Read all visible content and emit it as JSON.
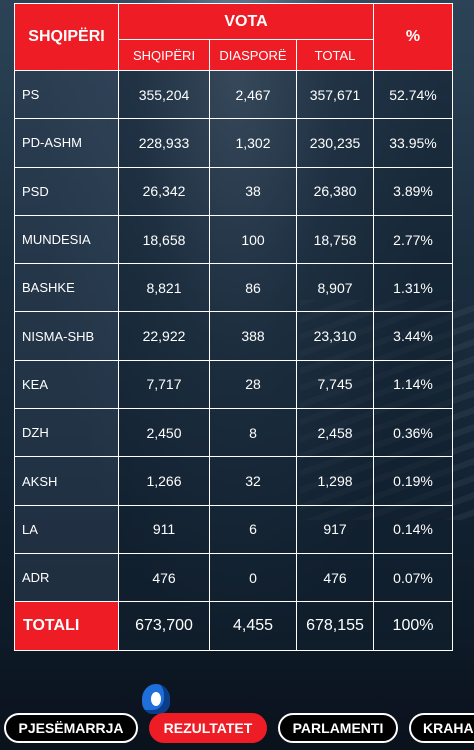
{
  "colors": {
    "accent": "#ee1c25",
    "text": "#ffffff",
    "tab_bg": "#000000"
  },
  "table": {
    "corner_label": "SHQIPËRI",
    "vota_label": "VOTA",
    "pct_label": "%",
    "sub_headers": [
      "SHQIPËRI",
      "DIASPORË",
      "TOTAL"
    ],
    "rows": [
      {
        "party": "PS",
        "albania": "355,204",
        "diaspora": "2,467",
        "total": "357,671",
        "pct": "52.74%"
      },
      {
        "party": "PD-ASHM",
        "albania": "228,933",
        "diaspora": "1,302",
        "total": "230,235",
        "pct": "33.95%"
      },
      {
        "party": "PSD",
        "albania": "26,342",
        "diaspora": "38",
        "total": "26,380",
        "pct": "3.89%"
      },
      {
        "party": "MUNDESIA",
        "albania": "18,658",
        "diaspora": "100",
        "total": "18,758",
        "pct": "2.77%"
      },
      {
        "party": "BASHKE",
        "albania": "8,821",
        "diaspora": "86",
        "total": "8,907",
        "pct": "1.31%"
      },
      {
        "party": "NISMA-SHB",
        "albania": "22,922",
        "diaspora": "388",
        "total": "23,310",
        "pct": "3.44%"
      },
      {
        "party": "KEA",
        "albania": "7,717",
        "diaspora": "28",
        "total": "7,745",
        "pct": "1.14%"
      },
      {
        "party": "DZH",
        "albania": "2,450",
        "diaspora": "8",
        "total": "2,458",
        "pct": "0.36%"
      },
      {
        "party": "AKSH",
        "albania": "1,266",
        "diaspora": "32",
        "total": "1,298",
        "pct": "0.19%"
      },
      {
        "party": "LA",
        "albania": "911",
        "diaspora": "6",
        "total": "917",
        "pct": "0.14%"
      },
      {
        "party": "ADR",
        "albania": "476",
        "diaspora": "0",
        "total": "476",
        "pct": "0.07%"
      }
    ],
    "totals": {
      "label": "TOTALI",
      "albania": "673,700",
      "diaspora": "4,455",
      "total": "678,155",
      "pct": "100%"
    }
  },
  "tabs": [
    {
      "label": "PJESËMARRJA",
      "active": false
    },
    {
      "label": "REZULTATET",
      "active": true
    },
    {
      "label": "PARLAMENTI",
      "active": false
    },
    {
      "label": "KRAHA",
      "active": false
    }
  ],
  "icons": {
    "logo": "blue-drop-logo-icon"
  }
}
